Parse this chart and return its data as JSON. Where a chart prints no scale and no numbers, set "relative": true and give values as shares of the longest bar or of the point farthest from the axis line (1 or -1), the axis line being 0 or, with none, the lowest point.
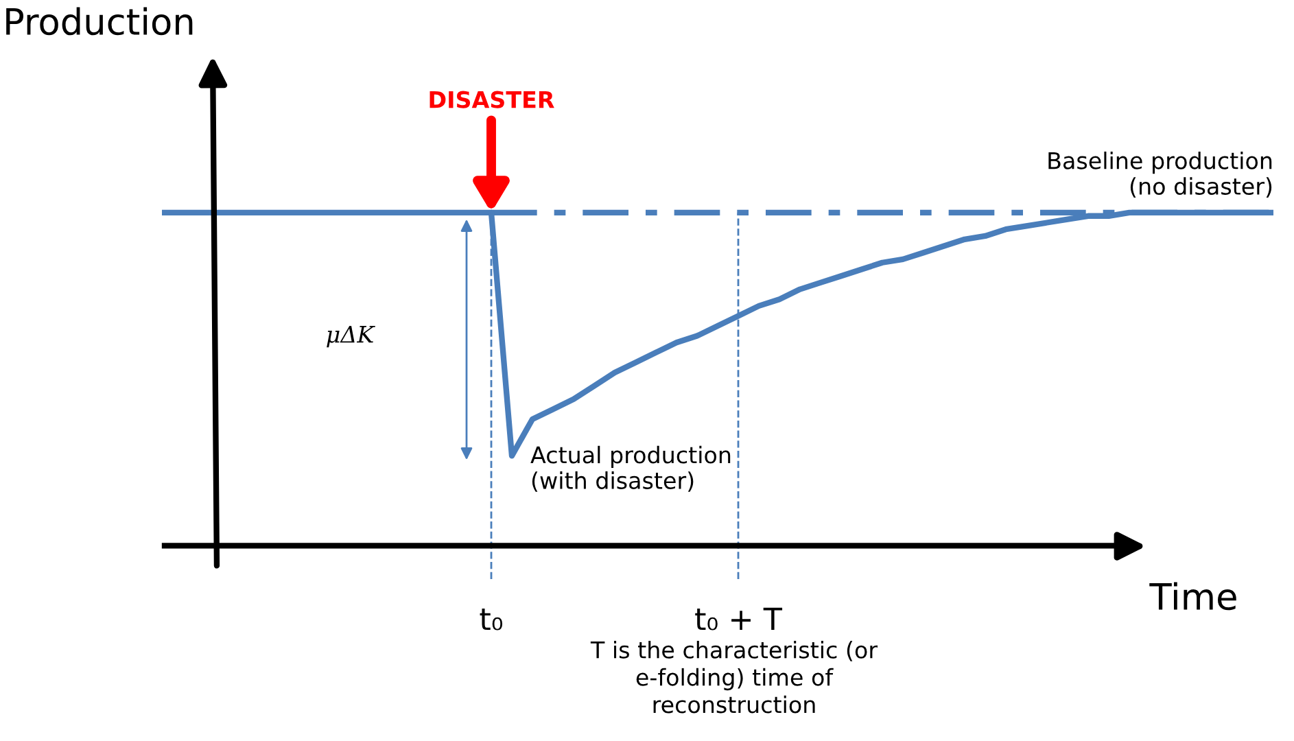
{
  "chart_data": {
    "type": "line",
    "relative": true,
    "xlabel": "Time",
    "ylabel": "Production",
    "categories": [
      null,
      null,
      null,
      null,
      null,
      null,
      null,
      null,
      null,
      null,
      null,
      null,
      null,
      null,
      null,
      null,
      "t₀",
      null,
      null,
      null,
      null,
      null,
      null,
      null,
      null,
      null,
      null,
      null,
      "t₀ + T",
      null,
      null,
      null,
      null,
      null,
      null,
      null,
      null,
      null,
      null,
      null,
      null,
      null,
      null,
      null,
      null,
      null,
      null,
      null,
      null,
      null,
      null,
      null,
      null,
      null,
      null
    ],
    "tick_labels": "x",
    "series": [
      {
        "color": "#4a7ebb",
        "line_style": "solid",
        "values": [
          1,
          1,
          1,
          1,
          1,
          1,
          1,
          1,
          1,
          1,
          1,
          1,
          1,
          1,
          1,
          1,
          1,
          null,
          null,
          null,
          null,
          null,
          null,
          null,
          null,
          null,
          null,
          null,
          null,
          null,
          null,
          null,
          null,
          null,
          null,
          null,
          null,
          null,
          null,
          null,
          null,
          null,
          null,
          null,
          null,
          null,
          null,
          null,
          null,
          null,
          null,
          null,
          null,
          null,
          null
        ]
      },
      {
        "name": "Baseline production\n(no disaster)",
        "color": "#4a7ebb",
        "line_style": "dashdot",
        "values": [
          null,
          null,
          null,
          null,
          null,
          null,
          null,
          null,
          null,
          null,
          null,
          null,
          null,
          null,
          null,
          null,
          1,
          1,
          1,
          1,
          1,
          1,
          1,
          1,
          1,
          1,
          1,
          1,
          1,
          1,
          1,
          1,
          1,
          1,
          1,
          1,
          1,
          1,
          1,
          1,
          1,
          1,
          1,
          1,
          1,
          1,
          1,
          1,
          1,
          1,
          1,
          1,
          1,
          1,
          1
        ]
      },
      {
        "name": "Actual production\n(with disaster)",
        "color": "#4a7ebb",
        "line_style": "solid",
        "values": [
          null,
          null,
          null,
          null,
          null,
          null,
          null,
          null,
          null,
          null,
          null,
          null,
          null,
          null,
          null,
          null,
          1,
          0.27,
          0.38,
          0.41,
          0.44,
          0.48,
          0.52,
          0.55,
          0.58,
          0.61,
          0.63,
          0.66,
          0.69,
          0.72,
          0.74,
          0.77,
          0.79,
          0.81,
          0.83,
          0.85,
          0.86,
          0.88,
          0.9,
          0.92,
          0.93,
          0.95,
          0.96,
          0.97,
          0.98,
          0.99,
          0.99,
          1,
          1,
          1,
          1,
          1,
          1,
          1,
          1
        ]
      }
    ],
    "ref_lines": [
      {
        "axis": "x",
        "value": "t₀",
        "color": "#4a7ebb",
        "line_style": "dashed"
      },
      {
        "axis": "x",
        "value": "t₀ + T",
        "color": "#4a7ebb",
        "line_style": "dashed"
      }
    ],
    "annotations": [
      {
        "text": "DISASTER",
        "x": "t₀",
        "y": 1
      },
      "μΔK",
      "T is the characteristic (or\ne-folding) time of\nreconstruction"
    ],
    "legend": false,
    "grid": false,
    "marker": "none"
  }
}
